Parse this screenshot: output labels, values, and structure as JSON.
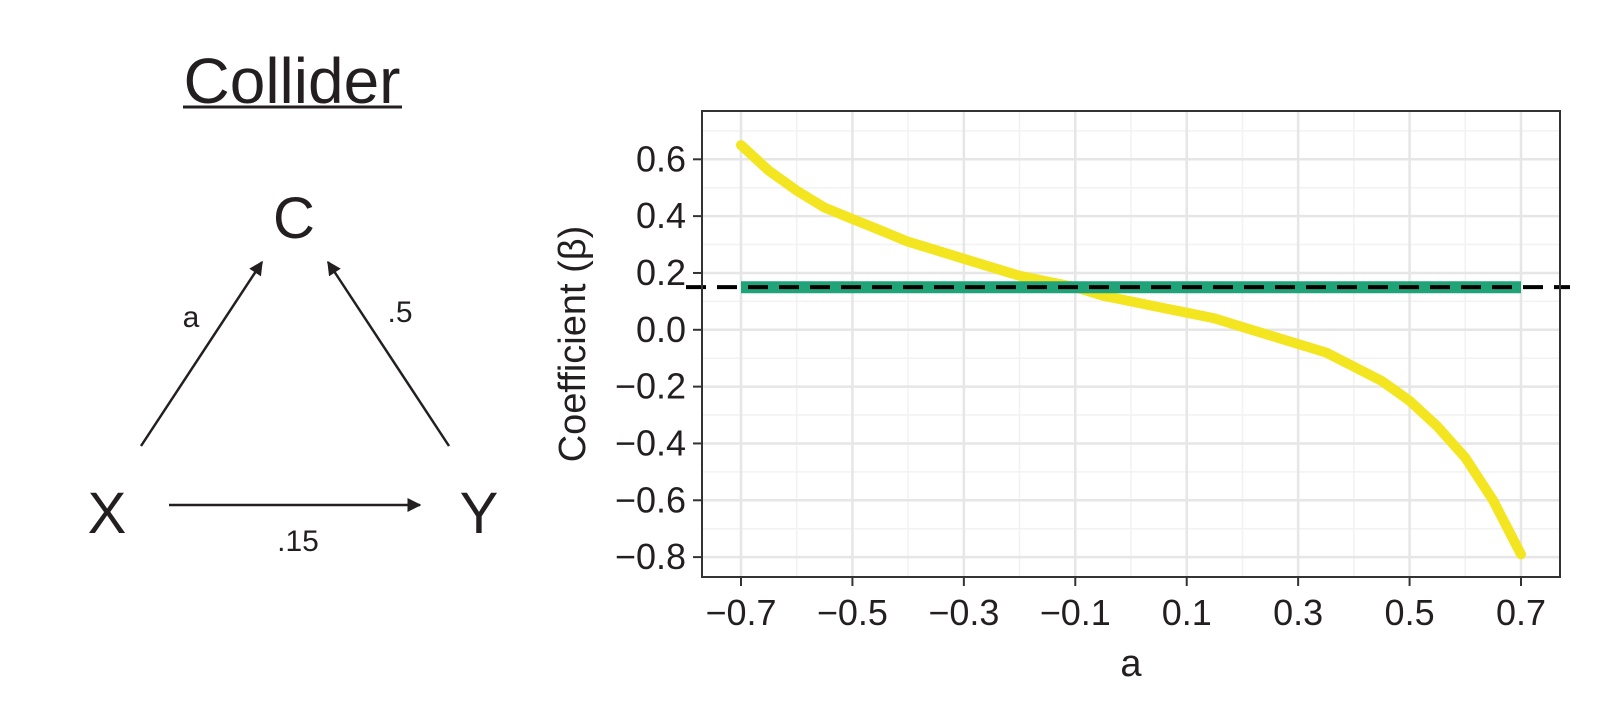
{
  "diagram": {
    "title": "Collider",
    "nodes": {
      "c": "C",
      "x": "X",
      "y": "Y"
    },
    "edges": {
      "x_to_c": "a",
      "y_to_c": ".5",
      "x_to_y": ".15"
    }
  },
  "chart_data": {
    "type": "line",
    "xlabel": "a",
    "ylabel": "Coefficient (β)",
    "xlim": [
      -0.77,
      0.77
    ],
    "ylim": [
      -0.87,
      0.77
    ],
    "x_ticks": [
      -0.7,
      -0.5,
      -0.3,
      -0.1,
      0.1,
      0.3,
      0.5,
      0.7
    ],
    "x_tick_labels": [
      "−0.7",
      "−0.5",
      "−0.3",
      "−0.1",
      "0.1",
      "0.3",
      "0.5",
      "0.7"
    ],
    "y_ticks": [
      -0.8,
      -0.6,
      -0.4,
      -0.2,
      0.0,
      0.2,
      0.4,
      0.6
    ],
    "y_tick_labels": [
      "−0.8",
      "−0.6",
      "−0.4",
      "−0.2",
      "0.0",
      "0.2",
      "0.4",
      "0.6"
    ],
    "grid": true,
    "series": [
      {
        "color": "#f4e521",
        "x": [
          -0.7,
          -0.65,
          -0.6,
          -0.55,
          -0.5,
          -0.45,
          -0.4,
          -0.35,
          -0.3,
          -0.25,
          -0.2,
          -0.15,
          -0.1,
          -0.05,
          0.0,
          0.05,
          0.1,
          0.15,
          0.2,
          0.25,
          0.3,
          0.35,
          0.4,
          0.45,
          0.5,
          0.55,
          0.6,
          0.65,
          0.7
        ],
        "y": [
          0.65,
          0.56,
          0.49,
          0.43,
          0.39,
          0.35,
          0.31,
          0.28,
          0.25,
          0.22,
          0.19,
          0.17,
          0.15,
          0.12,
          0.1,
          0.08,
          0.06,
          0.04,
          0.01,
          -0.02,
          -0.05,
          -0.08,
          -0.13,
          -0.18,
          -0.25,
          -0.34,
          -0.45,
          -0.6,
          -0.79
        ]
      },
      {
        "color": "#21a37a",
        "x": [
          -0.7,
          0.7
        ],
        "y": [
          0.15,
          0.15
        ]
      }
    ],
    "reference_line": {
      "y": 0.15,
      "style": "dashed",
      "color": "#000000"
    }
  }
}
